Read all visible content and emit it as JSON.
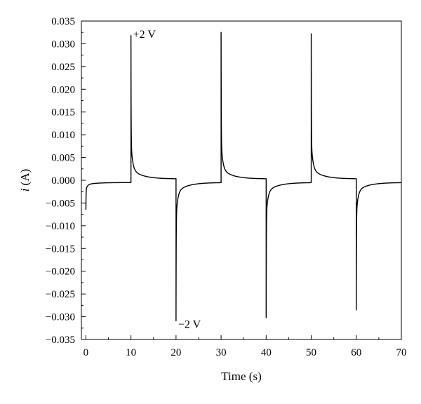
{
  "chart_data": {
    "type": "line",
    "title": "",
    "xlabel": "Time (s)",
    "ylabel_symbol": "i",
    "ylabel_unit": " (A)",
    "xlim": [
      -1,
      70
    ],
    "ylim": [
      -0.035,
      0.035
    ],
    "xticks": [
      0,
      10,
      20,
      30,
      40,
      50,
      60,
      70
    ],
    "xtick_labels": [
      "0",
      "10",
      "20",
      "30",
      "40",
      "50",
      "60",
      "70"
    ],
    "yticks": [
      -0.035,
      -0.03,
      -0.025,
      -0.02,
      -0.015,
      -0.01,
      -0.005,
      0,
      0.005,
      0.01,
      0.015,
      0.02,
      0.025,
      0.03,
      0.035
    ],
    "ytick_labels": [
      "−0.035",
      "−0.030",
      "−0.025",
      "−0.020",
      "−0.015",
      "−0.010",
      "−0.005",
      "0.000",
      "0.005",
      "0.010",
      "0.015",
      "0.020",
      "0.025",
      "0.030",
      "0.035"
    ],
    "grid": false,
    "legend": "none",
    "line_color": "#000000",
    "steps": [
      {
        "t": 0,
        "peak": -0.0065
      },
      {
        "t": 10,
        "peak": 0.0318
      },
      {
        "t": 20,
        "peak": -0.0309
      },
      {
        "t": 30,
        "peak": 0.0325
      },
      {
        "t": 40,
        "peak": -0.0302
      },
      {
        "t": 50,
        "peak": 0.0322
      },
      {
        "t": 60,
        "peak": -0.0285
      }
    ],
    "baseline_positive": 0.0003,
    "baseline_negative": -0.0005,
    "end_time": 70,
    "annotations": [
      {
        "text": "+2 V",
        "x": 10,
        "y": 0.0318
      },
      {
        "text": "−2 V",
        "x": 20,
        "y": -0.0309
      }
    ]
  }
}
